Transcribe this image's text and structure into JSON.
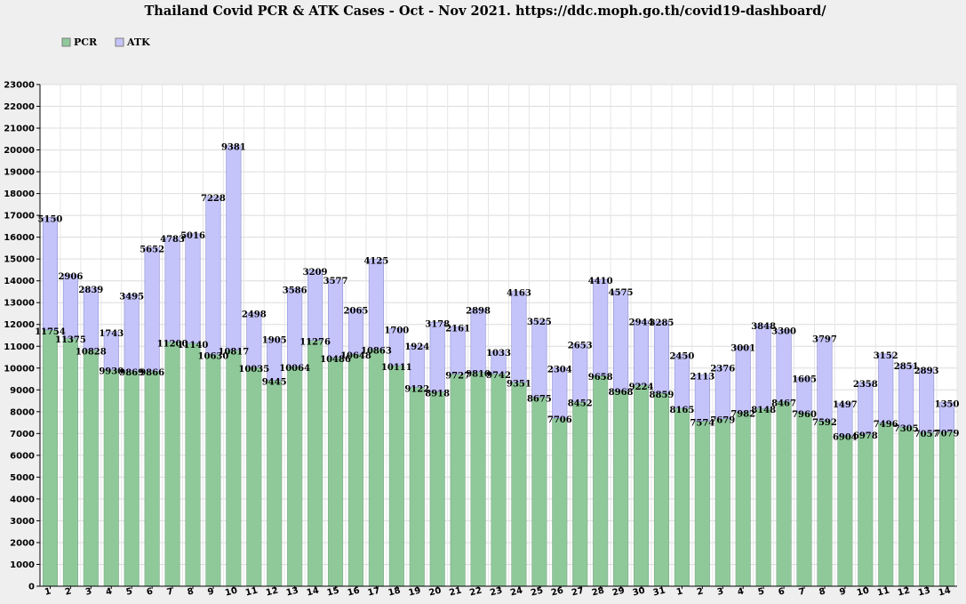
{
  "chart_data": {
    "type": "bar",
    "stacked": true,
    "title": "Thailand Covid PCR & ATK Cases - Oct - Nov 2021. https://ddc.moph.go.th/covid19-dashboard/",
    "xlabel": "",
    "ylabel": "",
    "ylim": [
      0,
      23000
    ],
    "ytick_step": 1000,
    "grid": true,
    "legend_position": "top-left",
    "categories": [
      "1",
      "2",
      "3",
      "4",
      "5",
      "6",
      "7",
      "8",
      "9",
      "10",
      "11",
      "12",
      "13",
      "14",
      "15",
      "16",
      "17",
      "18",
      "19",
      "20",
      "21",
      "22",
      "23",
      "24",
      "25",
      "26",
      "27",
      "28",
      "29",
      "30",
      "31",
      "1",
      "2",
      "3",
      "4",
      "5",
      "6",
      "7",
      "8",
      "9",
      "10",
      "11",
      "12",
      "13",
      "14"
    ],
    "series": [
      {
        "name": "PCR",
        "color": "#8fc99a",
        "values": [
          11754,
          11375,
          10828,
          9930,
          9869,
          9866,
          11200,
          11140,
          10630,
          10817,
          10035,
          9445,
          10064,
          11276,
          10486,
          10648,
          10863,
          10111,
          9122,
          8918,
          9727,
          9810,
          9742,
          9351,
          8675,
          7706,
          8452,
          9658,
          8968,
          9224,
          8859,
          8165,
          7574,
          7679,
          7982,
          8148,
          8467,
          7960,
          7592,
          6904,
          6978,
          7496,
          7305,
          7057,
          7079
        ]
      },
      {
        "name": "ATK",
        "color": "#c4c4fa",
        "values": [
          5150,
          2906,
          2839,
          1743,
          3495,
          5652,
          4783,
          5016,
          7228,
          9381,
          2498,
          1905,
          3586,
          3209,
          3577,
          2065,
          4125,
          1700,
          1924,
          3178,
          2161,
          2898,
          1033,
          4163,
          3525,
          2304,
          2653,
          4410,
          4575,
          2944,
          3285,
          2450,
          2113,
          2376,
          3001,
          3848,
          3300,
          1605,
          3797,
          1497,
          2358,
          3152,
          2851,
          2893,
          1350
        ]
      }
    ]
  }
}
